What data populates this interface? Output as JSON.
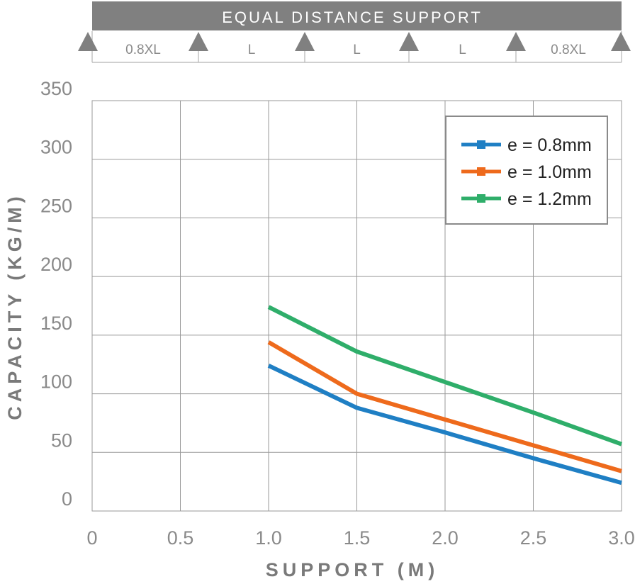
{
  "header": {
    "title": "EQUAL DISTANCE SUPPORT",
    "span_labels": [
      "0.8XL",
      "L",
      "L",
      "L",
      "0.8XL"
    ]
  },
  "chart_data": {
    "type": "line",
    "xlabel": "SUPPORT (M)",
    "ylabel": "CAPACITY (KG/M)",
    "xlim": [
      0,
      3.0
    ],
    "ylim": [
      0,
      350
    ],
    "x_ticks": [
      "0",
      "0.5",
      "1.0",
      "1.5",
      "2.0",
      "2.5",
      "3.0"
    ],
    "y_ticks": [
      "0",
      "50",
      "100",
      "150",
      "200",
      "250",
      "300",
      "350"
    ],
    "grid": true,
    "legend_position": "top-right",
    "series": [
      {
        "name": "e = 0.8mm",
        "color": "#1f7fc4",
        "points": [
          [
            1.0,
            124
          ],
          [
            1.5,
            88
          ],
          [
            2.0,
            67
          ],
          [
            2.5,
            45
          ],
          [
            3.0,
            24
          ]
        ]
      },
      {
        "name": "e = 1.0mm",
        "color": "#ee6a1c",
        "points": [
          [
            1.0,
            144
          ],
          [
            1.5,
            100
          ],
          [
            2.0,
            78
          ],
          [
            2.5,
            56
          ],
          [
            3.0,
            34
          ]
        ]
      },
      {
        "name": "e = 1.2mm",
        "color": "#2fae6a",
        "points": [
          [
            1.0,
            174
          ],
          [
            1.5,
            136
          ],
          [
            2.0,
            110
          ],
          [
            2.5,
            84
          ],
          [
            3.0,
            57
          ]
        ]
      }
    ]
  },
  "colors": {
    "header_bar": "#808080",
    "support_triangle": "#808080",
    "axis_text": "#8a8a8a",
    "axis_title": "#7a7a7a",
    "grid": "#9a9a9a"
  }
}
